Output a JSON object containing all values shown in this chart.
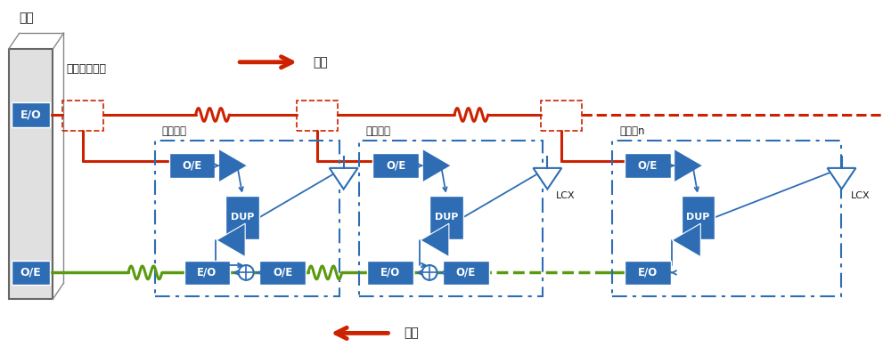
{
  "bg_color": "#ffffff",
  "box_color": "#2e6db4",
  "box_text_color": "#ffffff",
  "text_color": "#1a1a1a",
  "red_color": "#cc2200",
  "green_color": "#5a9a10",
  "blue_color": "#2e6db4",
  "label_oya": "親器",
  "label_splitter": "光スプリッタ",
  "label_down": "下り",
  "label_up": "上り",
  "label_relay1": "中継器１",
  "label_relay2": "中継器２",
  "label_relayn": "中継器n",
  "label_lcx": "LCX",
  "fig_w": 10.0,
  "fig_h": 3.9,
  "dpi": 100
}
